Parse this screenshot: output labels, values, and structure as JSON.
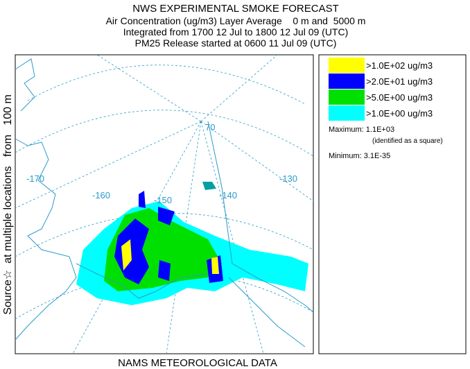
{
  "header": {
    "lines": [
      "NWS EXPERIMENTAL SMOKE FORECAST",
      "Air Concentration (ug/m3) Layer Average    0 m and  5000 m",
      "Integrated from 1700 12 Jul to 1800 12 Jul 09 (UTC)",
      "PM25 Release started at 0600 11 Jul 09 (UTC)"
    ]
  },
  "legend": {
    "items": [
      {
        "color": "#ffff00",
        "label": ">1.0E+02 ug/m3"
      },
      {
        "color": "#0000ff",
        "label": ">2.0E+01 ug/m3"
      },
      {
        "color": "#00e000",
        "label": ">5.0E+00 ug/m3"
      },
      {
        "color": "#00ffff",
        "label": ">1.0E+00 ug/m3"
      }
    ],
    "maximum": "Maximum: 1.1E+03",
    "note": "(identified as a square)",
    "minimum": "Minimum: 3.1E-35"
  },
  "map": {
    "labels": [
      "-170",
      "-160",
      "-150",
      "-140",
      "-130",
      "70"
    ]
  },
  "side_label": "Source☆  at multiple locations   from   100 m",
  "footer": "NAMS METEOROLOGICAL DATA"
}
